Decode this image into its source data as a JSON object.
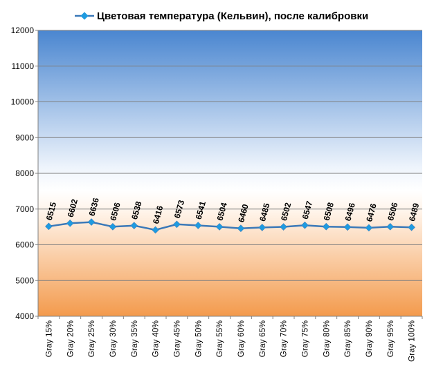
{
  "chart_data": {
    "type": "line",
    "title": "",
    "xlabel": "",
    "ylabel": "",
    "ylim": [
      4000,
      12000
    ],
    "yticks": [
      4000,
      5000,
      6000,
      7000,
      8000,
      9000,
      10000,
      11000,
      12000
    ],
    "grid": true,
    "legend_position": "top",
    "categories": [
      "Gray 15%",
      "Gray 20%",
      "Gray 25%",
      "Gray 30%",
      "Gray 35%",
      "Gray 40%",
      "Gray 45%",
      "Gray 50%",
      "Gray 55%",
      "Gray 60%",
      "Gray 65%",
      "Gray 70%",
      "Gray 75%",
      "Gray 80%",
      "Gray 85%",
      "Gray 90%",
      "Gray 95%",
      "Gray 100%"
    ],
    "series": [
      {
        "name": "Цветовая температура (Кельвин), после калибровки",
        "values": [
          6515,
          6602,
          6636,
          6506,
          6538,
          6416,
          6573,
          6541,
          6504,
          6460,
          6485,
          6502,
          6547,
          6508,
          6496,
          6476,
          6506,
          6489
        ]
      }
    ],
    "colors": {
      "line": "#3a78b8",
      "marker": "#1f9be0",
      "bg_top": "#4a86d0",
      "bg_mid": "#ffffff",
      "bg_bottom": "#f39a4c"
    }
  }
}
